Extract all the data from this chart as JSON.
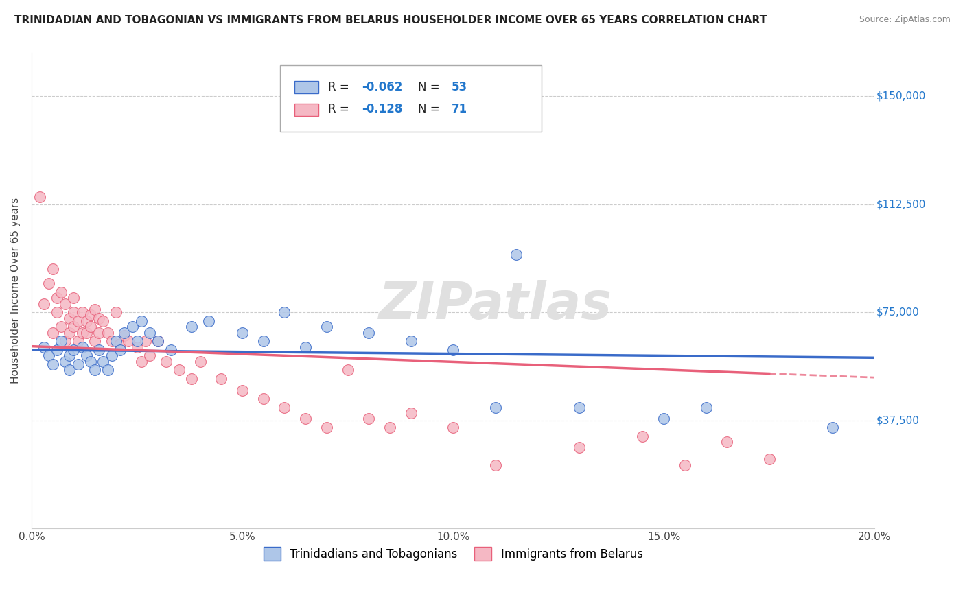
{
  "title": "TRINIDADIAN AND TOBAGONIAN VS IMMIGRANTS FROM BELARUS HOUSEHOLDER INCOME OVER 65 YEARS CORRELATION CHART",
  "source": "Source: ZipAtlas.com",
  "ylabel": "Householder Income Over 65 years",
  "xlim": [
    0.0,
    0.2
  ],
  "ylim": [
    0,
    165000
  ],
  "yticks": [
    37500,
    75000,
    112500,
    150000
  ],
  "ytick_labels": [
    "$37,500",
    "$75,000",
    "$112,500",
    "$150,000"
  ],
  "xticks": [
    0.0,
    0.05,
    0.1,
    0.15,
    0.2
  ],
  "xtick_labels": [
    "0.0%",
    "5.0%",
    "10.0%",
    "15.0%",
    "20.0%"
  ],
  "legend_entries": [
    "Trinidadians and Tobagonians",
    "Immigrants from Belarus"
  ],
  "legend_r_n": [
    {
      "R": -0.062,
      "N": 53
    },
    {
      "R": -0.128,
      "N": 71
    }
  ],
  "blue_color": "#aec6e8",
  "pink_color": "#f5b8c4",
  "blue_line_color": "#3a6bc9",
  "pink_line_color": "#e8607a",
  "watermark": "ZIPatlas",
  "background_color": "#ffffff",
  "grid_color": "#cccccc",
  "title_fontsize": 11,
  "blue_x": [
    0.003,
    0.004,
    0.005,
    0.006,
    0.007,
    0.008,
    0.009,
    0.009,
    0.01,
    0.011,
    0.012,
    0.013,
    0.014,
    0.015,
    0.016,
    0.017,
    0.018,
    0.019,
    0.02,
    0.021,
    0.022,
    0.024,
    0.025,
    0.026,
    0.028,
    0.03,
    0.033,
    0.038,
    0.042,
    0.05,
    0.055,
    0.06,
    0.065,
    0.07,
    0.08,
    0.09,
    0.1,
    0.11,
    0.115,
    0.13,
    0.15,
    0.16,
    0.19
  ],
  "blue_y": [
    63000,
    60000,
    57000,
    62000,
    65000,
    58000,
    55000,
    60000,
    62000,
    57000,
    63000,
    60000,
    58000,
    55000,
    62000,
    58000,
    55000,
    60000,
    65000,
    62000,
    68000,
    70000,
    65000,
    72000,
    68000,
    65000,
    62000,
    70000,
    72000,
    68000,
    65000,
    75000,
    63000,
    70000,
    68000,
    65000,
    62000,
    42000,
    95000,
    42000,
    38000,
    42000,
    35000
  ],
  "pink_x": [
    0.002,
    0.003,
    0.004,
    0.005,
    0.005,
    0.006,
    0.006,
    0.007,
    0.007,
    0.008,
    0.008,
    0.009,
    0.009,
    0.01,
    0.01,
    0.01,
    0.011,
    0.011,
    0.012,
    0.012,
    0.013,
    0.013,
    0.014,
    0.014,
    0.015,
    0.015,
    0.016,
    0.016,
    0.017,
    0.018,
    0.019,
    0.02,
    0.021,
    0.022,
    0.023,
    0.025,
    0.026,
    0.027,
    0.028,
    0.03,
    0.032,
    0.035,
    0.038,
    0.04,
    0.045,
    0.05,
    0.055,
    0.06,
    0.065,
    0.07,
    0.075,
    0.08,
    0.085,
    0.09,
    0.1,
    0.11,
    0.13,
    0.145,
    0.155,
    0.165,
    0.175
  ],
  "pink_y": [
    115000,
    78000,
    85000,
    90000,
    68000,
    75000,
    80000,
    82000,
    70000,
    78000,
    65000,
    73000,
    68000,
    80000,
    75000,
    70000,
    72000,
    65000,
    75000,
    68000,
    72000,
    68000,
    74000,
    70000,
    76000,
    65000,
    73000,
    68000,
    72000,
    68000,
    65000,
    75000,
    64000,
    67000,
    65000,
    63000,
    58000,
    65000,
    60000,
    65000,
    58000,
    55000,
    52000,
    58000,
    52000,
    48000,
    45000,
    42000,
    38000,
    35000,
    55000,
    38000,
    35000,
    40000,
    35000,
    22000,
    28000,
    32000,
    22000,
    30000,
    24000
  ]
}
